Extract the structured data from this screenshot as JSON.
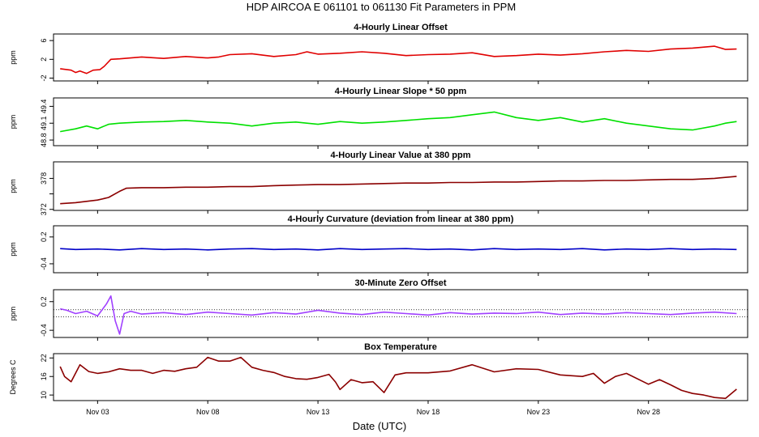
{
  "title": "HDP   AIRCOA E   061101 to 061130   Fit Parameters in PPM",
  "x_axis": {
    "label": "Date (UTC)",
    "range_days": [
      0,
      31.5
    ],
    "ticks": [
      {
        "day": 2,
        "label": "Nov 03"
      },
      {
        "day": 7,
        "label": "Nov 08"
      },
      {
        "day": 12,
        "label": "Nov 13"
      },
      {
        "day": 17,
        "label": "Nov 18"
      },
      {
        "day": 22,
        "label": "Nov 23"
      },
      {
        "day": 27,
        "label": "Nov 28"
      }
    ]
  },
  "chart_data": [
    {
      "type": "line",
      "title": "4-Hourly Linear Offset",
      "ylabel": "ppm",
      "ylim": [
        -2.6,
        7.4
      ],
      "yticks": [
        -2,
        2,
        6
      ],
      "yticklabels": [
        "-2",
        "2",
        "6"
      ],
      "color": "#e00000",
      "dotted_ref": [],
      "series": [
        {
          "x": [
            0.3,
            0.8,
            1.0,
            1.2,
            1.5,
            1.8,
            2.1,
            2.3,
            2.6,
            3.0,
            4,
            5,
            6,
            7,
            7.5,
            8,
            9,
            10,
            11,
            11.5,
            12,
            13,
            14,
            15,
            16,
            17,
            18,
            19,
            20,
            21,
            22,
            23,
            24,
            25,
            26,
            27,
            28,
            29,
            30,
            30.5,
            31.0
          ],
          "y": [
            0,
            -0.3,
            -0.8,
            -0.5,
            -1,
            -0.3,
            -0.2,
            0.5,
            2,
            2.1,
            2.5,
            2.2,
            2.6,
            2.3,
            2.5,
            3,
            3.2,
            2.6,
            3,
            3.6,
            3.1,
            3.3,
            3.6,
            3.3,
            2.8,
            3.0,
            3.1,
            3.4,
            2.6,
            2.8,
            3.1,
            2.9,
            3.2,
            3.6,
            3.9,
            3.7,
            4.2,
            4.4,
            4.8,
            4.1,
            4.2
          ]
        }
      ]
    },
    {
      "type": "line",
      "title": "4-Hourly Linear Slope * 50 ppm",
      "ylabel": "ppm",
      "ylim": [
        48.7,
        49.55
      ],
      "yticks": [
        48.8,
        49.1,
        49.4
      ],
      "yticklabels": [
        "48.8",
        "49.1",
        "49.4"
      ],
      "color": "#00e000",
      "dotted_ref": [],
      "series": [
        {
          "x": [
            0.3,
            1,
            1.5,
            2,
            2.5,
            3,
            4,
            5,
            6,
            7,
            8,
            9,
            10,
            11,
            12,
            13,
            14,
            15,
            16,
            17,
            18,
            19,
            20,
            21,
            22,
            23,
            24,
            25,
            26,
            27,
            28,
            29,
            30,
            30.5,
            31.0
          ],
          "y": [
            48.95,
            49.0,
            49.05,
            49.0,
            49.08,
            49.1,
            49.12,
            49.13,
            49.15,
            49.12,
            49.1,
            49.05,
            49.1,
            49.12,
            49.08,
            49.13,
            49.1,
            49.12,
            49.15,
            49.18,
            49.2,
            49.25,
            49.3,
            49.2,
            49.15,
            49.2,
            49.12,
            49.18,
            49.1,
            49.05,
            49.0,
            48.98,
            49.05,
            49.1,
            49.13
          ]
        }
      ]
    },
    {
      "type": "line",
      "title": "4-Hourly Linear Value at 380 ppm",
      "ylabel": "ppm",
      "ylim": [
        371.8,
        381.2
      ],
      "yticks": [
        372,
        375,
        378
      ],
      "yticklabels": [
        "372",
        "",
        "378"
      ],
      "color": "#8b0000",
      "dotted_ref": [],
      "series": [
        {
          "x": [
            0.3,
            1,
            2,
            2.5,
            3,
            3.3,
            4,
            5,
            6,
            7,
            8,
            9,
            10,
            11,
            12,
            13,
            14,
            15,
            16,
            17,
            18,
            19,
            20,
            21,
            22,
            23,
            24,
            25,
            26,
            27,
            28,
            29,
            30,
            31.0
          ],
          "y": [
            373.1,
            373.3,
            373.8,
            374.3,
            375.5,
            376.1,
            376.2,
            376.2,
            376.3,
            376.3,
            376.4,
            376.4,
            376.6,
            376.7,
            376.8,
            376.8,
            376.9,
            377.0,
            377.1,
            377.1,
            377.2,
            377.2,
            377.3,
            377.3,
            377.4,
            377.5,
            377.5,
            377.6,
            377.6,
            377.7,
            377.8,
            377.8,
            378.0,
            378.4
          ]
        }
      ]
    },
    {
      "type": "line",
      "title": "4-Hourly Curvature (deviation from linear at 380 ppm)",
      "ylabel": "ppm",
      "ylim": [
        -0.6,
        0.45
      ],
      "yticks": [
        -0.4,
        0.2
      ],
      "yticklabels": [
        "-0.4",
        "0.2"
      ],
      "color": "#0000c8",
      "dotted_ref": [],
      "series": [
        {
          "x": [
            0.3,
            1,
            2,
            3,
            4,
            5,
            6,
            7,
            8,
            9,
            10,
            11,
            12,
            13,
            14,
            15,
            16,
            17,
            18,
            19,
            20,
            21,
            22,
            23,
            24,
            25,
            26,
            27,
            28,
            29,
            30,
            31.0
          ],
          "y": [
            -0.06,
            -0.08,
            -0.07,
            -0.09,
            -0.06,
            -0.08,
            -0.07,
            -0.09,
            -0.07,
            -0.06,
            -0.08,
            -0.07,
            -0.09,
            -0.06,
            -0.08,
            -0.07,
            -0.06,
            -0.08,
            -0.07,
            -0.09,
            -0.06,
            -0.08,
            -0.07,
            -0.08,
            -0.06,
            -0.09,
            -0.07,
            -0.08,
            -0.06,
            -0.08,
            -0.07,
            -0.08
          ]
        }
      ]
    },
    {
      "type": "line",
      "title": "30-Minute Zero Offset",
      "ylabel": "ppm",
      "ylim": [
        -0.55,
        0.45
      ],
      "yticks": [
        -0.4,
        0.2
      ],
      "yticklabels": [
        "-0.4",
        "0.2"
      ],
      "color": "#a040ff",
      "dotted_ref": [
        0.03,
        -0.12
      ],
      "series": [
        {
          "x": [
            0.3,
            0.6,
            1,
            1.5,
            2,
            2.4,
            2.6,
            2.8,
            3.0,
            3.2,
            3.5,
            4,
            5,
            6,
            7,
            8,
            9,
            10,
            11,
            12,
            13,
            14,
            15,
            16,
            17,
            18,
            19,
            20,
            21,
            22,
            23,
            24,
            25,
            26,
            27,
            28,
            29,
            30,
            31.0
          ],
          "y": [
            0.05,
            0.02,
            -0.05,
            0.0,
            -0.1,
            0.15,
            0.32,
            -0.2,
            -0.48,
            -0.05,
            0.0,
            -0.06,
            -0.03,
            -0.07,
            -0.02,
            -0.05,
            -0.08,
            -0.03,
            -0.06,
            0.02,
            -0.04,
            -0.07,
            -0.02,
            -0.05,
            -0.08,
            -0.03,
            -0.06,
            -0.04,
            -0.05,
            -0.02,
            -0.07,
            -0.04,
            -0.06,
            -0.03,
            -0.05,
            -0.07,
            -0.04,
            -0.02,
            -0.05
          ]
        }
      ]
    },
    {
      "type": "line",
      "title": "Box Temperature",
      "ylabel": "Degrees C",
      "ylim": [
        8.2,
        23.4
      ],
      "yticks": [
        10,
        16,
        22
      ],
      "yticklabels": [
        "10",
        "16",
        "22"
      ],
      "color": "#8b0000",
      "dotted_ref": [],
      "series": [
        {
          "x": [
            0.3,
            0.5,
            0.8,
            1.2,
            1.6,
            2.0,
            2.5,
            3,
            3.5,
            4,
            4.5,
            5,
            5.5,
            6,
            6.5,
            7,
            7.5,
            8,
            8.5,
            9,
            9.5,
            10,
            10.5,
            11,
            11.5,
            12,
            12.5,
            12.8,
            13,
            13.5,
            14,
            14.5,
            15,
            15.5,
            16,
            17,
            18,
            19,
            20,
            21,
            22,
            23,
            24,
            24.5,
            25,
            25.5,
            26,
            27,
            27.5,
            28,
            28.5,
            29,
            29.5,
            30,
            30.5,
            31.0
          ],
          "y": [
            19.2,
            16,
            14.3,
            19.8,
            17.6,
            17,
            17.5,
            18.5,
            18,
            18,
            17,
            18,
            17.7,
            18.5,
            19,
            22.2,
            21,
            21,
            22.2,
            19,
            18,
            17.3,
            16,
            15.3,
            15.1,
            15.7,
            16.7,
            14.2,
            11.8,
            15,
            14,
            14.3,
            10.8,
            16.5,
            17.2,
            17.2,
            17.8,
            19.8,
            17.5,
            18.5,
            18.3,
            16.5,
            16,
            17,
            13.8,
            16,
            17,
            13.5,
            15,
            13.3,
            11.5,
            10.5,
            10.0,
            9.2,
            8.9,
            11.9
          ]
        }
      ]
    }
  ]
}
